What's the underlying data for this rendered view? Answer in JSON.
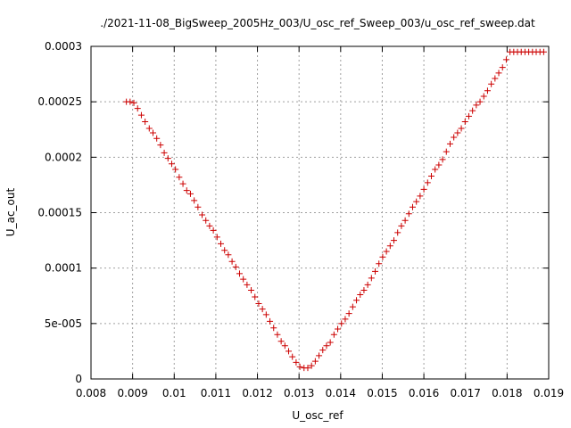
{
  "chart_data": {
    "type": "scatter",
    "title": "./2021-11-08_BigSweep_2005Hz_003/U_osc_ref_Sweep_003/u_osc_ref_sweep.dat",
    "xlabel": "U_osc_ref",
    "ylabel": "U_ac_out",
    "xlim": [
      0.008,
      0.019
    ],
    "ylim": [
      0,
      0.0003
    ],
    "x_ticks": [
      {
        "value": 0.008,
        "label": "0.008"
      },
      {
        "value": 0.009,
        "label": "0.009"
      },
      {
        "value": 0.01,
        "label": "0.01"
      },
      {
        "value": 0.011,
        "label": "0.011"
      },
      {
        "value": 0.012,
        "label": "0.012"
      },
      {
        "value": 0.013,
        "label": "0.013"
      },
      {
        "value": 0.014,
        "label": "0.014"
      },
      {
        "value": 0.015,
        "label": "0.015"
      },
      {
        "value": 0.016,
        "label": "0.016"
      },
      {
        "value": 0.017,
        "label": "0.017"
      },
      {
        "value": 0.018,
        "label": "0.018"
      },
      {
        "value": 0.019,
        "label": "0.019"
      }
    ],
    "y_ticks": [
      {
        "value": 0,
        "label": "0"
      },
      {
        "value": 5e-05,
        "label": "5e-005"
      },
      {
        "value": 0.0001,
        "label": "0.0001"
      },
      {
        "value": 0.00015,
        "label": "0.00015"
      },
      {
        "value": 0.0002,
        "label": "0.0002"
      },
      {
        "value": 0.00025,
        "label": "0.00025"
      },
      {
        "value": 0.0003,
        "label": "0.0003"
      }
    ],
    "grid": true,
    "marker": "+",
    "marker_color": "#cc0000",
    "series": [
      {
        "x": [
          0.00885,
          0.00894,
          0.00903,
          0.00912,
          0.00921,
          0.0093,
          0.0094,
          0.00949,
          0.00958,
          0.00967,
          0.00976,
          0.00985,
          0.00994,
          0.01003,
          0.01012,
          0.01021,
          0.0103,
          0.01039,
          0.01048,
          0.01057,
          0.01067,
          0.01076,
          0.01085,
          0.01094,
          0.01103,
          0.01112,
          0.01121,
          0.0113,
          0.01139,
          0.01148,
          0.01157,
          0.01166,
          0.01175,
          0.01185,
          0.01194,
          0.01203,
          0.01212,
          0.01221,
          0.0123,
          0.01239,
          0.01248,
          0.01257,
          0.01266,
          0.01275,
          0.01284,
          0.01293,
          0.01302,
          0.01312,
          0.01321,
          0.0133,
          0.01339,
          0.01348,
          0.01357,
          0.01366,
          0.01375,
          0.01384,
          0.01393,
          0.01402,
          0.01411,
          0.0142,
          0.01429,
          0.01438,
          0.01447,
          0.01456,
          0.01465,
          0.01474,
          0.01483,
          0.01492,
          0.01501,
          0.0151,
          0.01519,
          0.01528,
          0.01537,
          0.01546,
          0.01555,
          0.01564,
          0.01573,
          0.01582,
          0.01591,
          0.016,
          0.01609,
          0.01618,
          0.01627,
          0.01636,
          0.01645,
          0.01654,
          0.01663,
          0.01672,
          0.01681,
          0.0169,
          0.01699,
          0.01708,
          0.01717,
          0.01726,
          0.01735,
          0.01744,
          0.01753,
          0.01762,
          0.01771,
          0.0178,
          0.01789,
          0.01798,
          0.01807,
          0.01816,
          0.01825,
          0.01834,
          0.01843,
          0.01852,
          0.01861,
          0.0187,
          0.01879,
          0.01888
        ],
        "y": [
          0.00025,
          0.00025,
          0.000249,
          0.000244,
          0.000238,
          0.000232,
          0.000226,
          0.000222,
          0.000217,
          0.000211,
          0.000204,
          0.000199,
          0.000194,
          0.000189,
          0.000182,
          0.000176,
          0.00017,
          0.000167,
          0.000161,
          0.000155,
          0.000148,
          0.000143,
          0.000138,
          0.000134,
          0.000128,
          0.000122,
          0.000116,
          0.000112,
          0.000106,
          0.000101,
          9.5e-05,
          9e-05,
          8.5e-05,
          8e-05,
          7.4e-05,
          6.8e-05,
          6.3e-05,
          5.8e-05,
          5.2e-05,
          4.6e-05,
          4e-05,
          3.4e-05,
          3e-05,
          2.5e-05,
          2e-05,
          1.5e-05,
          1.1e-05,
          1e-05,
          1e-05,
          1.2e-05,
          1.6e-05,
          2.1e-05,
          2.6e-05,
          3e-05,
          3.3e-05,
          4e-05,
          4.5e-05,
          5e-05,
          5.4e-05,
          5.9e-05,
          6.5e-05,
          7.1e-05,
          7.6e-05,
          8e-05,
          8.5e-05,
          9.1e-05,
          9.7e-05,
          0.000104,
          0.00011,
          0.000115,
          0.00012,
          0.000125,
          0.000132,
          0.000138,
          0.000143,
          0.000149,
          0.000155,
          0.00016,
          0.000165,
          0.000171,
          0.000177,
          0.000183,
          0.000189,
          0.000193,
          0.000198,
          0.000205,
          0.000212,
          0.000218,
          0.000222,
          0.000226,
          0.000232,
          0.000237,
          0.000242,
          0.000247,
          0.00025,
          0.000255,
          0.00026,
          0.000266,
          0.000271,
          0.000276,
          0.000281,
          0.000288,
          0.000295,
          0.000295,
          0.000295,
          0.000295,
          0.000295,
          0.000295,
          0.000295,
          0.000295,
          0.000295,
          0.000295
        ]
      }
    ]
  }
}
